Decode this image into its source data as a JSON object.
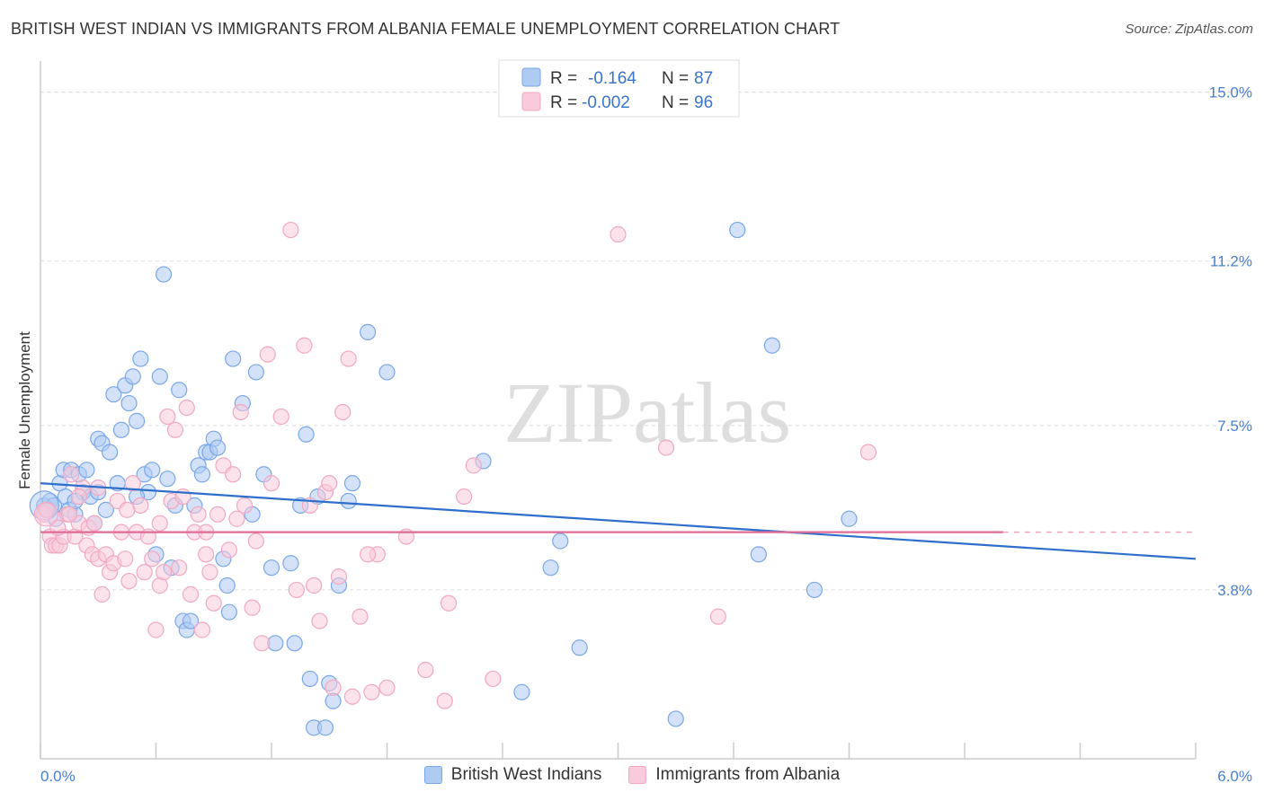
{
  "chart_data": {
    "type": "scatter",
    "title": "BRITISH WEST INDIAN VS IMMIGRANTS FROM ALBANIA FEMALE UNEMPLOYMENT CORRELATION CHART",
    "source": "Source: ZipAtlas.com",
    "ylabel": "Female Unemployment",
    "xlabel": "",
    "xlim": [
      0,
      6
    ],
    "ylim": [
      0,
      15.7
    ],
    "x_tick_labels": [
      "0.0%",
      "6.0%"
    ],
    "y_ticks": [
      {
        "value": 3.8,
        "label": "3.8%"
      },
      {
        "value": 7.5,
        "label": "7.5%"
      },
      {
        "value": 11.2,
        "label": "11.2%"
      },
      {
        "value": 15.0,
        "label": "15.0%"
      }
    ],
    "watermark": "ZIPatlas",
    "legend": {
      "rows": [
        {
          "r_label": "R =",
          "r_value": "-0.164",
          "n_label": "N =",
          "n_value": "87"
        },
        {
          "r_label": "R =",
          "r_value": "-0.002",
          "n_label": "N =",
          "n_value": "96"
        }
      ]
    },
    "series": [
      {
        "name": "British West Indians",
        "color": "#7aa7e8",
        "fill": "#aecbf2",
        "line_color": "#2f6fcc",
        "trend": {
          "x": [
            0.0,
            6.0
          ],
          "y": [
            6.2,
            4.5
          ]
        },
        "points": [
          [
            0.02,
            5.7
          ],
          [
            0.04,
            5.6
          ],
          [
            0.05,
            5.8
          ],
          [
            0.07,
            5.7
          ],
          [
            0.08,
            5.4
          ],
          [
            0.1,
            6.2
          ],
          [
            0.12,
            6.5
          ],
          [
            0.13,
            5.9
          ],
          [
            0.15,
            5.6
          ],
          [
            0.16,
            6.5
          ],
          [
            0.18,
            5.5
          ],
          [
            0.2,
            6.4
          ],
          [
            0.22,
            6.0
          ],
          [
            0.24,
            6.5
          ],
          [
            0.26,
            5.9
          ],
          [
            0.28,
            5.3
          ],
          [
            0.3,
            7.2
          ],
          [
            0.32,
            7.1
          ],
          [
            0.34,
            5.6
          ],
          [
            0.36,
            6.9
          ],
          [
            0.38,
            8.2
          ],
          [
            0.4,
            6.2
          ],
          [
            0.42,
            7.4
          ],
          [
            0.44,
            8.4
          ],
          [
            0.46,
            8.0
          ],
          [
            0.48,
            8.6
          ],
          [
            0.5,
            7.6
          ],
          [
            0.52,
            9.0
          ],
          [
            0.54,
            6.4
          ],
          [
            0.56,
            6.0
          ],
          [
            0.58,
            6.5
          ],
          [
            0.6,
            4.6
          ],
          [
            0.62,
            8.6
          ],
          [
            0.64,
            10.9
          ],
          [
            0.66,
            6.3
          ],
          [
            0.68,
            4.3
          ],
          [
            0.7,
            5.7
          ],
          [
            0.72,
            8.3
          ],
          [
            0.74,
            3.1
          ],
          [
            0.76,
            2.9
          ],
          [
            0.78,
            3.1
          ],
          [
            0.8,
            5.7
          ],
          [
            0.82,
            6.6
          ],
          [
            0.84,
            6.4
          ],
          [
            0.86,
            6.9
          ],
          [
            0.88,
            6.9
          ],
          [
            0.9,
            7.2
          ],
          [
            0.92,
            7.0
          ],
          [
            0.95,
            4.5
          ],
          [
            0.97,
            3.9
          ],
          [
            0.98,
            3.3
          ],
          [
            1.0,
            9.0
          ],
          [
            1.05,
            8.0
          ],
          [
            1.1,
            5.5
          ],
          [
            1.12,
            8.7
          ],
          [
            1.16,
            6.4
          ],
          [
            1.2,
            4.3
          ],
          [
            1.22,
            2.6
          ],
          [
            1.3,
            4.4
          ],
          [
            1.32,
            2.6
          ],
          [
            1.35,
            5.7
          ],
          [
            1.38,
            7.3
          ],
          [
            1.4,
            1.8
          ],
          [
            1.42,
            0.7
          ],
          [
            1.44,
            5.9
          ],
          [
            1.48,
            0.7
          ],
          [
            1.5,
            1.7
          ],
          [
            1.52,
            1.3
          ],
          [
            1.55,
            3.9
          ],
          [
            1.6,
            5.8
          ],
          [
            1.62,
            6.2
          ],
          [
            1.7,
            9.6
          ],
          [
            1.8,
            8.7
          ],
          [
            2.3,
            6.7
          ],
          [
            2.5,
            1.5
          ],
          [
            2.65,
            4.3
          ],
          [
            2.7,
            4.9
          ],
          [
            2.8,
            2.5
          ],
          [
            3.3,
            0.9
          ],
          [
            3.62,
            11.9
          ],
          [
            3.73,
            4.6
          ],
          [
            3.8,
            9.3
          ],
          [
            4.02,
            3.8
          ],
          [
            4.2,
            5.4
          ],
          [
            0.5,
            5.9
          ],
          [
            0.3,
            6.0
          ],
          [
            0.18,
            5.8
          ]
        ]
      },
      {
        "name": "Immigrants from Albania",
        "color": "#f2a8c2",
        "fill": "#f8cadb",
        "line_color": "#e26a96",
        "trend": {
          "x": [
            0.0,
            5.0
          ],
          "y": [
            5.1,
            5.1
          ]
        },
        "dashed_extension": {
          "x": [
            5.0,
            6.0
          ],
          "y": [
            5.1,
            5.1
          ]
        },
        "points": [
          [
            0.02,
            5.5
          ],
          [
            0.03,
            5.6
          ],
          [
            0.05,
            5.0
          ],
          [
            0.06,
            4.8
          ],
          [
            0.08,
            4.8
          ],
          [
            0.1,
            4.8
          ],
          [
            0.12,
            5.0
          ],
          [
            0.14,
            5.5
          ],
          [
            0.16,
            6.4
          ],
          [
            0.18,
            5.0
          ],
          [
            0.2,
            5.3
          ],
          [
            0.22,
            6.1
          ],
          [
            0.24,
            4.8
          ],
          [
            0.25,
            5.2
          ],
          [
            0.27,
            4.6
          ],
          [
            0.28,
            5.3
          ],
          [
            0.3,
            4.5
          ],
          [
            0.32,
            3.7
          ],
          [
            0.34,
            4.6
          ],
          [
            0.36,
            4.2
          ],
          [
            0.38,
            4.4
          ],
          [
            0.4,
            5.8
          ],
          [
            0.42,
            5.1
          ],
          [
            0.44,
            4.5
          ],
          [
            0.46,
            4.0
          ],
          [
            0.48,
            6.2
          ],
          [
            0.5,
            5.1
          ],
          [
            0.52,
            5.7
          ],
          [
            0.54,
            4.2
          ],
          [
            0.56,
            5.0
          ],
          [
            0.58,
            4.5
          ],
          [
            0.6,
            2.9
          ],
          [
            0.62,
            3.9
          ],
          [
            0.64,
            4.2
          ],
          [
            0.66,
            7.7
          ],
          [
            0.68,
            5.8
          ],
          [
            0.7,
            7.4
          ],
          [
            0.72,
            4.3
          ],
          [
            0.74,
            5.9
          ],
          [
            0.76,
            7.9
          ],
          [
            0.78,
            3.7
          ],
          [
            0.8,
            5.1
          ],
          [
            0.82,
            5.5
          ],
          [
            0.84,
            2.9
          ],
          [
            0.86,
            4.6
          ],
          [
            0.88,
            4.2
          ],
          [
            0.9,
            3.5
          ],
          [
            0.92,
            5.5
          ],
          [
            0.95,
            6.6
          ],
          [
            0.98,
            4.7
          ],
          [
            1.0,
            6.4
          ],
          [
            1.02,
            5.4
          ],
          [
            1.04,
            7.8
          ],
          [
            1.06,
            5.7
          ],
          [
            1.1,
            3.4
          ],
          [
            1.12,
            4.9
          ],
          [
            1.15,
            2.6
          ],
          [
            1.18,
            9.1
          ],
          [
            1.2,
            6.2
          ],
          [
            1.25,
            7.7
          ],
          [
            1.3,
            11.9
          ],
          [
            1.33,
            3.8
          ],
          [
            1.37,
            9.3
          ],
          [
            1.4,
            5.7
          ],
          [
            1.42,
            3.9
          ],
          [
            1.45,
            3.1
          ],
          [
            1.48,
            6.0
          ],
          [
            1.5,
            6.2
          ],
          [
            1.52,
            1.6
          ],
          [
            1.55,
            4.1
          ],
          [
            1.57,
            7.8
          ],
          [
            1.6,
            9.0
          ],
          [
            1.62,
            1.4
          ],
          [
            1.66,
            3.2
          ],
          [
            1.72,
            1.5
          ],
          [
            1.75,
            4.6
          ],
          [
            1.8,
            1.6
          ],
          [
            2.0,
            2.0
          ],
          [
            2.1,
            1.3
          ],
          [
            2.12,
            3.5
          ],
          [
            2.2,
            5.9
          ],
          [
            2.25,
            6.6
          ],
          [
            2.35,
            1.8
          ],
          [
            3.0,
            11.8
          ],
          [
            3.25,
            7.0
          ],
          [
            3.52,
            3.2
          ],
          [
            4.3,
            6.9
          ],
          [
            1.7,
            4.6
          ],
          [
            1.9,
            5.0
          ],
          [
            0.86,
            5.1
          ],
          [
            0.62,
            5.3
          ],
          [
            0.45,
            5.6
          ],
          [
            0.3,
            6.1
          ],
          [
            0.15,
            5.5
          ],
          [
            0.09,
            5.2
          ],
          [
            0.2,
            5.9
          ]
        ]
      }
    ]
  }
}
